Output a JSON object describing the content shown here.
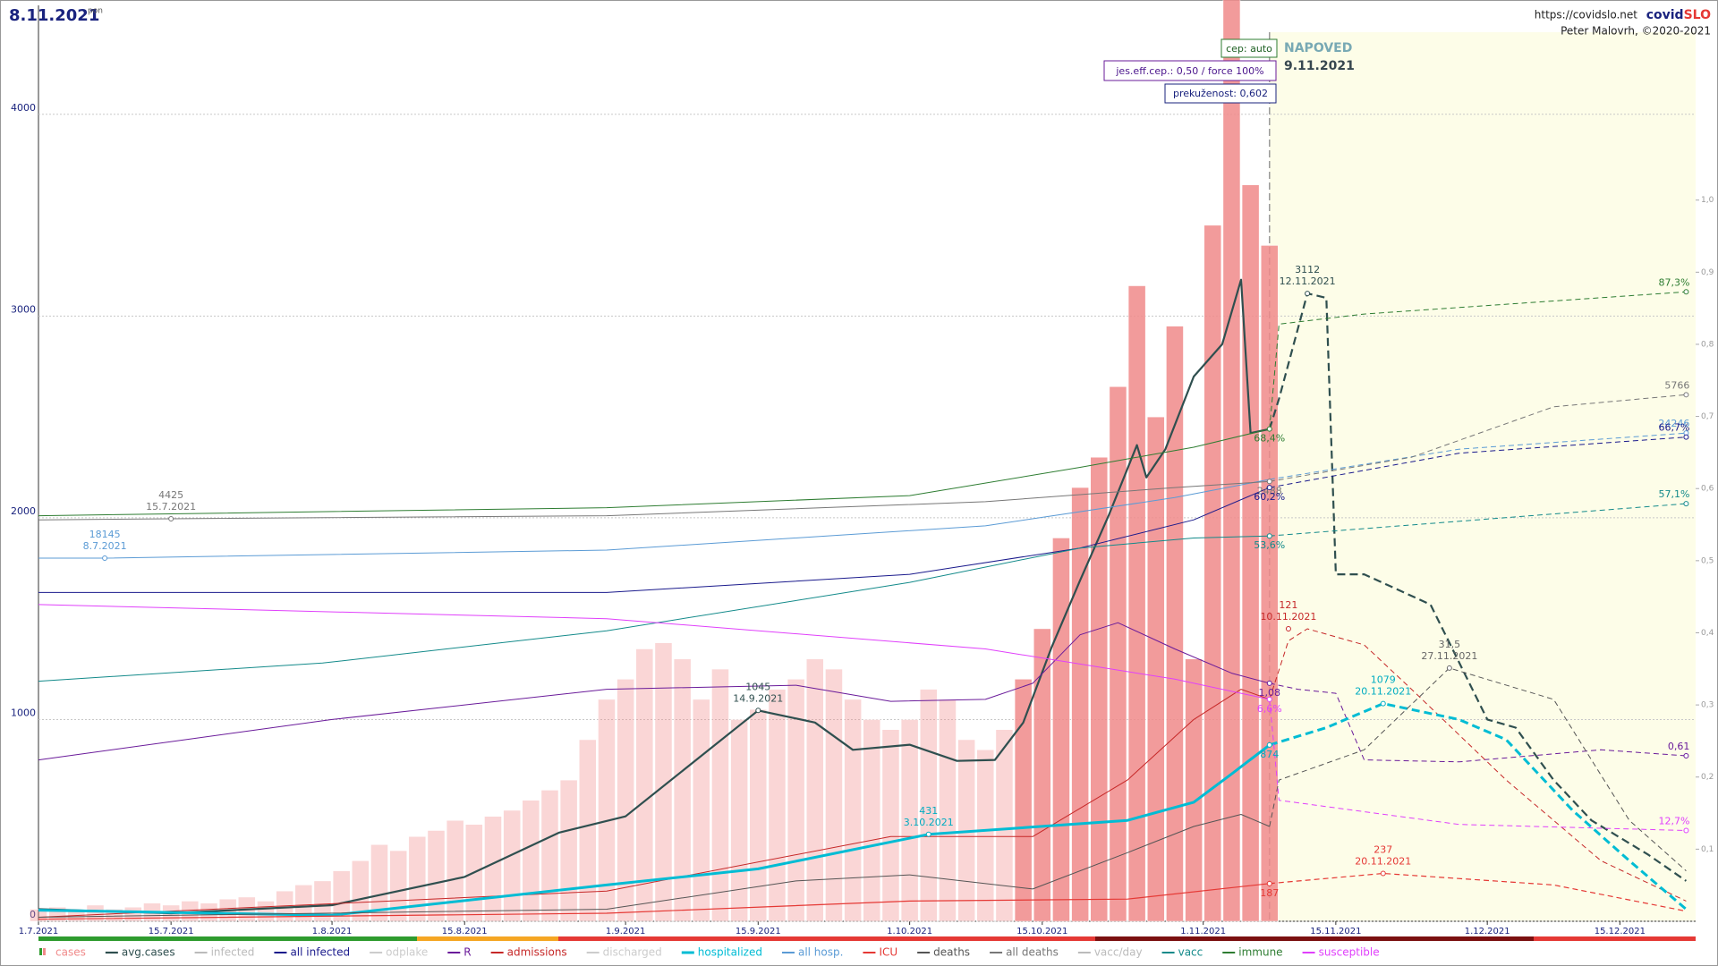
{
  "chart_data": {
    "type": "line",
    "title": "8.11.2021",
    "subtitle": "pon",
    "url": "https://covidslo.net",
    "brand": [
      "covid",
      "SLO"
    ],
    "author": "Peter Malovrh, ©2020-2021",
    "settings_boxes": [
      "cep: auto",
      "jes.eff.cep.: 0,50 / force 100%",
      "prekuženost: 0,602"
    ],
    "forecast_title": "NAPOVED",
    "forecast_date": "9.11.2021",
    "forecast_x": 130,
    "xlim": [
      0,
      175
    ],
    "xticks": [
      {
        "value": 0,
        "label": "1.7.2021"
      },
      {
        "value": 14,
        "label": "15.7.2021"
      },
      {
        "value": 31,
        "label": "1.8.2021"
      },
      {
        "value": 45,
        "label": "15.8.2021"
      },
      {
        "value": 62,
        "label": "1.9.2021"
      },
      {
        "value": 76,
        "label": "15.9.2021"
      },
      {
        "value": 92,
        "label": "1.10.2021"
      },
      {
        "value": 106,
        "label": "15.10.2021"
      },
      {
        "value": 123,
        "label": "1.11.2021"
      },
      {
        "value": 137,
        "label": "15.11.2021"
      },
      {
        "value": 153,
        "label": "1.12.2021"
      },
      {
        "value": 167,
        "label": "15.12.2021"
      }
    ],
    "ylim": [
      0,
      4540
    ],
    "yticks": [
      0,
      1000,
      2000,
      3000,
      4000
    ],
    "y2lim": [
      0,
      1.27
    ],
    "y2ticks": [
      {
        "value": 0.1,
        "label": "0,1"
      },
      {
        "value": 0.2,
        "label": "0,2"
      },
      {
        "value": 0.3,
        "label": "0,3"
      },
      {
        "value": 0.4,
        "label": "0,4"
      },
      {
        "value": 0.5,
        "label": "0,5"
      },
      {
        "value": 0.6,
        "label": "0,6"
      },
      {
        "value": 0.7,
        "label": "0,7"
      },
      {
        "value": 0.8,
        "label": "0,8"
      },
      {
        "value": 0.9,
        "label": "0,9"
      },
      {
        "value": 1.0,
        "label": "1,0"
      }
    ],
    "grid": true,
    "series": [
      {
        "name": "cases",
        "type": "bar",
        "color": "#f08a8a",
        "x": [
          0,
          2,
          4,
          6,
          8,
          10,
          12,
          14,
          16,
          18,
          20,
          22,
          24,
          26,
          28,
          30,
          32,
          34,
          36,
          38,
          40,
          42,
          44,
          46,
          48,
          50,
          52,
          54,
          56,
          58,
          60,
          62,
          64,
          66,
          68,
          70,
          72,
          74,
          76,
          78,
          80,
          82,
          84,
          86,
          88,
          90,
          92,
          94,
          96,
          98,
          100,
          102,
          104,
          106,
          108,
          110,
          112,
          114,
          116,
          118,
          120,
          122,
          124,
          126,
          128,
          130
        ],
        "values": [
          60,
          70,
          50,
          80,
          60,
          70,
          90,
          80,
          100,
          90,
          110,
          120,
          100,
          150,
          180,
          200,
          250,
          300,
          380,
          350,
          420,
          450,
          500,
          480,
          520,
          550,
          600,
          650,
          700,
          900,
          1100,
          1200,
          1350,
          1380,
          1300,
          1100,
          1250,
          1000,
          1050,
          1150,
          1200,
          1300,
          1250,
          1100,
          1000,
          950,
          1000,
          1150,
          1100,
          900,
          850,
          950,
          1200,
          1450,
          1900,
          2150,
          2300,
          2650,
          3150,
          2500,
          2950,
          1300,
          3450,
          4900,
          3650,
          3350
        ]
      },
      {
        "name": "avg.cases",
        "color": "#2f4f4f",
        "width": 2.2,
        "x": [
          0,
          14,
          31,
          45,
          55,
          62,
          70,
          76,
          82,
          86,
          92,
          97,
          101,
          104,
          107,
          110,
          113,
          116,
          117,
          119,
          122,
          125,
          127,
          128,
          130,
          131,
          134,
          136,
          137,
          140,
          147,
          153,
          156,
          160,
          164,
          170,
          174
        ],
        "values": [
          60,
          40,
          80,
          220,
          440,
          520,
          820,
          1045,
          985,
          850,
          875,
          795,
          800,
          985,
          1360,
          1690,
          2010,
          2360,
          2200,
          2340,
          2700,
          2860,
          3180,
          2420,
          2440,
          2590,
          3112,
          3090,
          1720,
          1720,
          1570,
          1000,
          960,
          700,
          500,
          330,
          200
        ]
      },
      {
        "name": "infected",
        "color": "#bbbbbb",
        "x": [],
        "values": []
      },
      {
        "name": "all infected",
        "color": "#1a1a8c",
        "width": 1,
        "x": [
          0,
          60,
          92,
          110,
          122,
          130,
          150,
          174
        ],
        "values": [
          1630,
          1630,
          1720,
          1850,
          1990,
          2150,
          2320,
          2400
        ]
      },
      {
        "name": "odplake",
        "color": "#cccccc",
        "x": [],
        "values": []
      },
      {
        "name": "R",
        "color": "#6a1b9a",
        "width": 1,
        "x": [
          0,
          31,
          60,
          80,
          90,
          100,
          105,
          110,
          114,
          120,
          126,
          130,
          133,
          137,
          140,
          150,
          165,
          174
        ],
        "values": [
          800,
          1000,
          1150,
          1170,
          1090,
          1100,
          1180,
          1420,
          1480,
          1350,
          1230,
          1180,
          1150,
          1130,
          800,
          790,
          850,
          820
        ]
      },
      {
        "name": "admissions",
        "color": "#c62828",
        "width": 1,
        "x": [
          0,
          60,
          90,
          105,
          115,
          122,
          127,
          130,
          132,
          134,
          140,
          145,
          155,
          165,
          174
        ],
        "values": [
          20,
          150,
          420,
          420,
          700,
          1000,
          1150,
          1100,
          1390,
          1450,
          1370,
          1150,
          700,
          300,
          100
        ]
      },
      {
        "name": "discharged",
        "color": "#cccccc",
        "x": [],
        "values": []
      },
      {
        "name": "hospitalized",
        "color": "#00bcd4",
        "width": 3,
        "x": [
          0,
          31,
          60,
          76,
          94,
          115,
          122,
          126,
          130,
          136,
          142,
          150,
          155,
          162,
          168,
          174
        ],
        "values": [
          55,
          30,
          180,
          260,
          431,
          500,
          590,
          730,
          874,
          960,
          1079,
          1000,
          900,
          550,
          300,
          60
        ]
      },
      {
        "name": "all hosp.",
        "color": "#5b9bd5",
        "width": 1,
        "x": [
          0,
          7,
          60,
          100,
          120,
          130,
          150,
          174
        ],
        "values": [
          1800,
          1800,
          1840,
          1960,
          2100,
          2190,
          2340,
          2420
        ]
      },
      {
        "name": "ICU",
        "color": "#e53935",
        "width": 1.2,
        "x": [
          0,
          60,
          92,
          115,
          130,
          142,
          160,
          174
        ],
        "values": [
          10,
          40,
          100,
          110,
          187,
          237,
          180,
          50
        ]
      },
      {
        "name": "deaths",
        "color": "#555555",
        "width": 1,
        "x": [
          0,
          60,
          80,
          92,
          105,
          115,
          122,
          127,
          130,
          131,
          140,
          149,
          160,
          168,
          174
        ],
        "values": [
          20,
          60,
          200,
          230,
          160,
          340,
          470,
          530,
          470,
          700,
          850,
          1255,
          1100,
          500,
          250
        ]
      },
      {
        "name": "all deaths",
        "color": "#777777",
        "width": 1,
        "x": [
          0,
          14,
          60,
          100,
          120,
          130,
          145,
          160,
          174
        ],
        "values": [
          1990,
          1995,
          2010,
          2080,
          2150,
          2180,
          2300,
          2550,
          2610
        ]
      },
      {
        "name": "vacc/day",
        "color": "#bbbbbb",
        "x": [],
        "values": []
      },
      {
        "name": "vacc",
        "color": "#138a8a",
        "width": 1,
        "x": [
          0,
          30,
          60,
          92,
          110,
          122,
          130,
          174
        ],
        "values": [
          1190,
          1280,
          1440,
          1680,
          1850,
          1900,
          1910,
          2070
        ]
      },
      {
        "name": "immune",
        "color": "#2e7d32",
        "width": 1,
        "x": [
          0,
          60,
          92,
          110,
          122,
          130,
          131,
          140,
          174
        ],
        "values": [
          2010,
          2050,
          2110,
          2250,
          2350,
          2440,
          2960,
          3010,
          3120
        ]
      },
      {
        "name": "susceptible",
        "color": "#e040fb",
        "width": 1,
        "x": [
          0,
          60,
          100,
          120,
          130,
          131,
          150,
          174
        ],
        "values": [
          1570,
          1500,
          1350,
          1200,
          1100,
          600,
          480,
          450
        ]
      }
    ],
    "annotations": [
      {
        "label": "4425",
        "date": "15.7.2021",
        "x": 14,
        "y": 1995,
        "color": "#777777"
      },
      {
        "label": "18145",
        "date": "8.7.2021",
        "x": 7,
        "y": 1800,
        "color": "#5b9bd5"
      },
      {
        "label": "1045",
        "date": "14.9.2021",
        "x": 76,
        "y": 1045,
        "color": "#2f4f4f"
      },
      {
        "label": "431",
        "date": "3.10.2021",
        "x": 94,
        "y": 431,
        "color": "#00acc1"
      },
      {
        "label": "3112",
        "date": "12.11.2021",
        "x": 134,
        "y": 3112,
        "color": "#2f4f4f"
      },
      {
        "label": "121",
        "date": "10.11.2021",
        "x": 132,
        "y": 1450,
        "color": "#c62828"
      },
      {
        "label": "1079",
        "date": "20.11.2021",
        "x": 142,
        "y": 1079,
        "color": "#00acc1"
      },
      {
        "label": "31,5",
        "date": "27.11.2021",
        "x": 149,
        "y": 1255,
        "color": "#666666"
      },
      {
        "label": "237",
        "date": "20.11.2021",
        "x": 142,
        "y": 237,
        "color": "#e53935"
      },
      {
        "label": "68,4%",
        "x": 130,
        "y": 2440,
        "color": "#2e7d32"
      },
      {
        "label": "2488",
        "x": 130,
        "y": 2180,
        "color": "#777777"
      },
      {
        "label": "60,2%",
        "x": 130,
        "y": 2150,
        "color": "#1a1a8c"
      },
      {
        "label": "53,6%",
        "x": 130,
        "y": 1910,
        "color": "#138a8a"
      },
      {
        "label": "1,08",
        "x": 130,
        "y": 1180,
        "color": "#6a1b9a"
      },
      {
        "label": "6,6%",
        "x": 130,
        "y": 1100,
        "color": "#e040fb"
      },
      {
        "label": "874",
        "x": 130,
        "y": 874,
        "color": "#00acc1"
      },
      {
        "label": "187",
        "x": 130,
        "y": 187,
        "color": "#e53935"
      },
      {
        "label": "87,3%",
        "x": 174,
        "y": 3120,
        "color": "#2e7d32"
      },
      {
        "label": "5766",
        "x": 174,
        "y": 2610,
        "color": "#777777"
      },
      {
        "label": "24246",
        "x": 174,
        "y": 2420,
        "color": "#5b9bd5"
      },
      {
        "label": "66,7%",
        "x": 174,
        "y": 2400,
        "color": "#1a1a8c"
      },
      {
        "label": "57,1%",
        "x": 174,
        "y": 2070,
        "color": "#138a8a"
      },
      {
        "label": "0,61",
        "x": 174,
        "y": 820,
        "color": "#6a1b9a"
      },
      {
        "label": "12,7%",
        "x": 174,
        "y": 450,
        "color": "#e040fb"
      }
    ]
  }
}
